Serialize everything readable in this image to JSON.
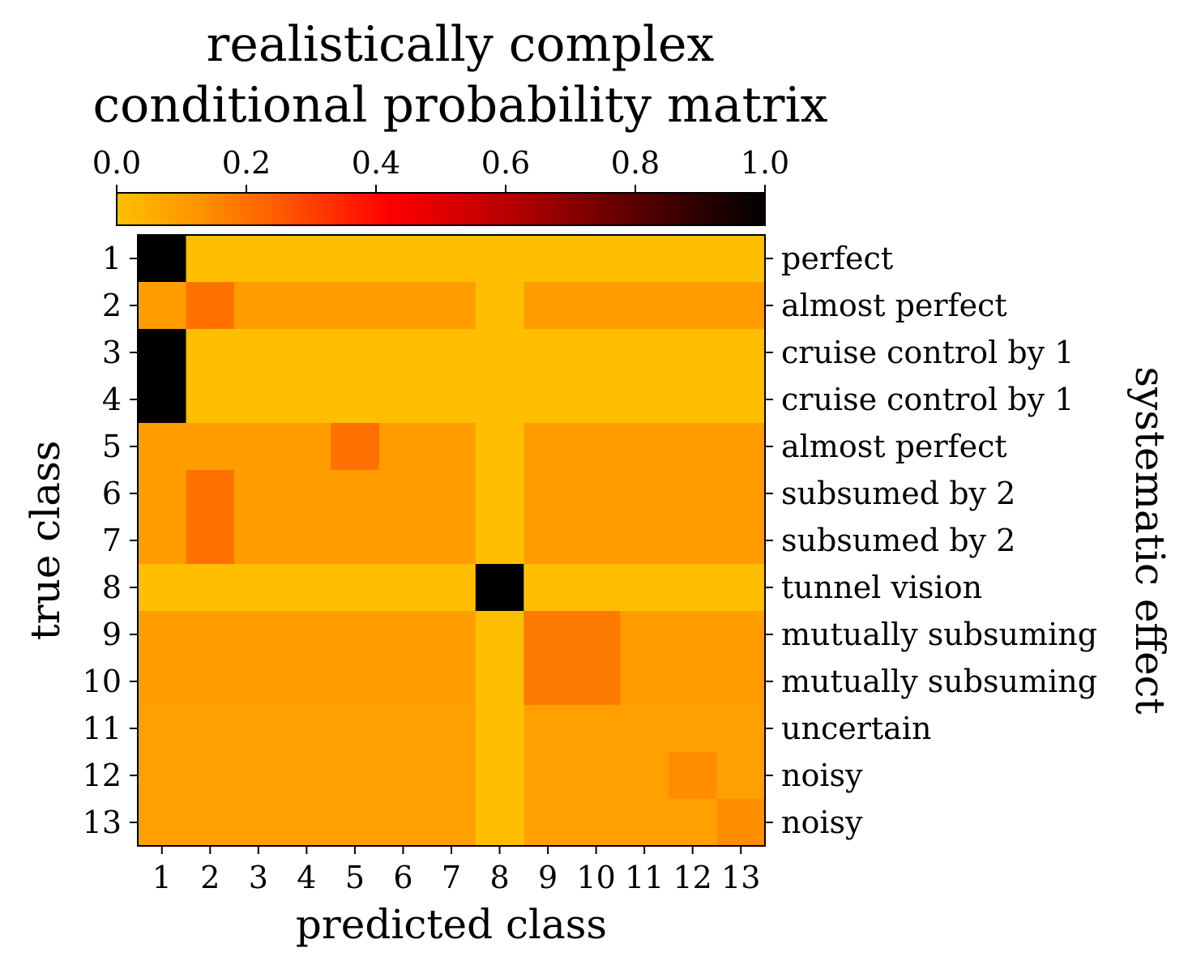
{
  "chart_data": {
    "type": "heatmap",
    "title": [
      "realistically complex",
      "conditional probability matrix"
    ],
    "xlabel": "predicted class",
    "ylabel": "true class",
    "ylabel_right": "systematic effect",
    "x_categories": [
      "1",
      "2",
      "3",
      "4",
      "5",
      "6",
      "7",
      "8",
      "9",
      "10",
      "11",
      "12",
      "13"
    ],
    "y_categories": [
      "1",
      "2",
      "3",
      "4",
      "5",
      "6",
      "7",
      "8",
      "9",
      "10",
      "11",
      "12",
      "13"
    ],
    "row_effects": [
      "perfect",
      "almost perfect",
      "cruise control by 1",
      "cruise control by 1",
      "almost perfect",
      "subsumed by 2",
      "subsumed by 2",
      "tunnel vision",
      "mutually subsuming",
      "mutually subsuming",
      "uncertain",
      "noisy",
      "noisy"
    ],
    "colorbar": {
      "range": [
        0.0,
        1.0
      ],
      "ticks": [
        "0.0",
        "0.2",
        "0.4",
        "0.6",
        "0.8",
        "1.0"
      ],
      "orientation": "horizontal",
      "location": "top",
      "colormap": "autumn-to-black",
      "colors": [
        "#ffbf00",
        "#ff8c00",
        "#ff5500",
        "#ff0000",
        "#a00000",
        "#500000",
        "#000000"
      ]
    },
    "values": [
      [
        1.0,
        0,
        0,
        0,
        0,
        0,
        0,
        0,
        0,
        0,
        0,
        0,
        0
      ],
      [
        0.1,
        0.2,
        0.1,
        0.1,
        0.1,
        0.1,
        0.1,
        0,
        0.1,
        0.1,
        0.1,
        0.1,
        0.1
      ],
      [
        1.0,
        0,
        0,
        0,
        0,
        0,
        0,
        0,
        0,
        0,
        0,
        0,
        0
      ],
      [
        1.0,
        0,
        0,
        0,
        0,
        0,
        0,
        0,
        0,
        0,
        0,
        0,
        0
      ],
      [
        0.1,
        0.1,
        0.1,
        0.1,
        0.2,
        0.1,
        0.1,
        0,
        0.1,
        0.1,
        0.1,
        0.1,
        0.1
      ],
      [
        0.1,
        0.2,
        0.1,
        0.1,
        0.1,
        0.1,
        0.1,
        0,
        0.1,
        0.1,
        0.1,
        0.1,
        0.1
      ],
      [
        0.1,
        0.2,
        0.1,
        0.1,
        0.1,
        0.1,
        0.1,
        0,
        0.1,
        0.1,
        0.1,
        0.1,
        0.1
      ],
      [
        0,
        0,
        0,
        0,
        0,
        0,
        0,
        1.0,
        0,
        0,
        0,
        0,
        0
      ],
      [
        0.1,
        0.1,
        0.1,
        0.1,
        0.1,
        0.1,
        0.1,
        0,
        0.18,
        0.18,
        0.1,
        0.1,
        0.1
      ],
      [
        0.1,
        0.1,
        0.1,
        0.1,
        0.1,
        0.1,
        0.1,
        0,
        0.18,
        0.18,
        0.1,
        0.1,
        0.1
      ],
      [
        0.09,
        0.09,
        0.09,
        0.09,
        0.09,
        0.09,
        0.09,
        0,
        0.09,
        0.09,
        0.09,
        0.09,
        0.09
      ],
      [
        0.09,
        0.09,
        0.09,
        0.09,
        0.09,
        0.09,
        0.09,
        0,
        0.09,
        0.09,
        0.09,
        0.14,
        0.09
      ],
      [
        0.09,
        0.09,
        0.09,
        0.09,
        0.09,
        0.09,
        0.09,
        0,
        0.09,
        0.09,
        0.09,
        0.09,
        0.14
      ]
    ]
  }
}
